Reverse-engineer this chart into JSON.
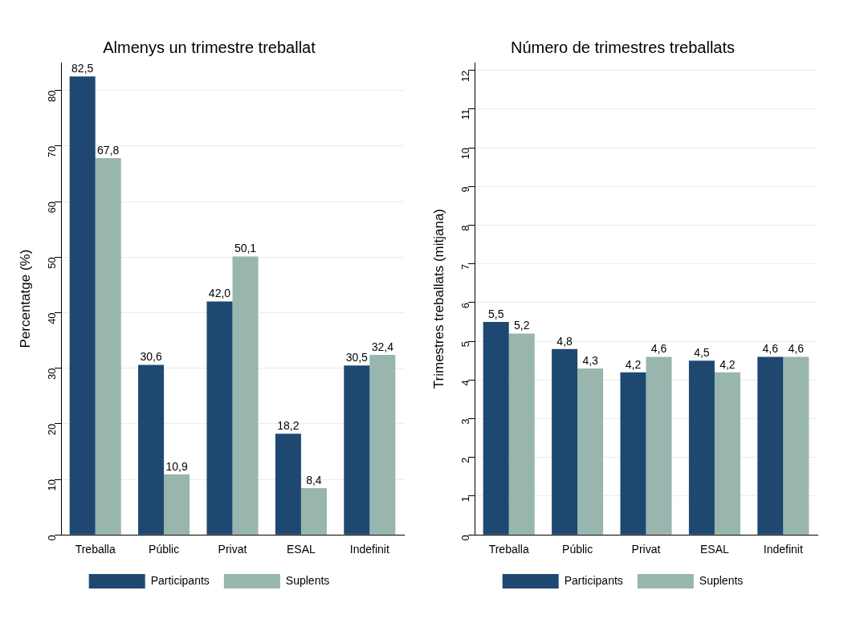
{
  "chart_data": [
    {
      "type": "bar",
      "title": "Almenys un trimestre treballat",
      "ylabel": "Percentatge (%)",
      "categories": [
        "Treballa",
        "Públic",
        "Privat",
        "ESAL",
        "Indefinit"
      ],
      "series": [
        {
          "name": "Participants",
          "color": "#1e4870",
          "values": [
            82.5,
            30.6,
            42.0,
            18.2,
            30.5
          ],
          "value_labels": [
            "82,5",
            "30,6",
            "42,0",
            "18,2",
            "30,5"
          ]
        },
        {
          "name": "Suplents",
          "color": "#98b5ae",
          "values": [
            67.8,
            10.9,
            50.1,
            8.4,
            32.4
          ],
          "value_labels": [
            "67,8",
            "10,9",
            "50,1",
            "8,4",
            "32,4"
          ]
        }
      ],
      "ylim": [
        0,
        85
      ],
      "yticks": [
        0,
        10,
        20,
        30,
        40,
        50,
        60,
        70,
        80
      ],
      "grid": "y",
      "legend": "bottom"
    },
    {
      "type": "bar",
      "title": "Número de trimestres treballats",
      "ylabel": "Trimestres treballats (mitjana)",
      "categories": [
        "Treballa",
        "Públic",
        "Privat",
        "ESAL",
        "Indefinit"
      ],
      "series": [
        {
          "name": "Participants",
          "color": "#1e4870",
          "values": [
            5.5,
            4.8,
            4.2,
            4.5,
            4.6
          ],
          "value_labels": [
            "5,5",
            "4,8",
            "4,2",
            "4,5",
            "4,6"
          ]
        },
        {
          "name": "Suplents",
          "color": "#98b5ae",
          "values": [
            5.2,
            4.3,
            4.6,
            4.2,
            4.6
          ],
          "value_labels": [
            "5,2",
            "4,3",
            "4,6",
            "4,2",
            "4,6"
          ]
        }
      ],
      "ylim": [
        0,
        12.2
      ],
      "yticks": [
        0,
        1,
        2,
        3,
        4,
        5,
        6,
        7,
        8,
        9,
        10,
        11,
        12
      ],
      "grid": "y",
      "legend": "bottom"
    }
  ]
}
